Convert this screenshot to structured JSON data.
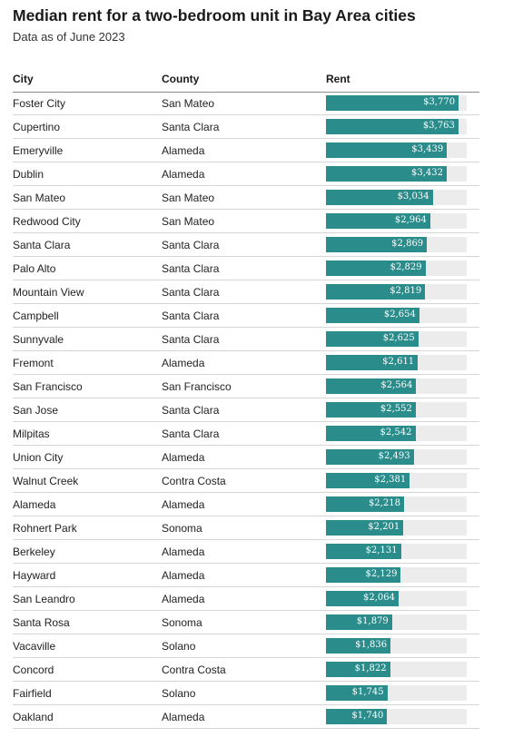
{
  "header": {
    "title": "Median rent for a two-bedroom unit in Bay Area cities",
    "subtitle": "Data as of June 2023"
  },
  "columns": {
    "city": "City",
    "county": "County",
    "rent": "Rent"
  },
  "colors": {
    "bar": "#2b8c8c",
    "track": "#ececec"
  },
  "chart_data": {
    "type": "bar",
    "orientation": "horizontal",
    "title": "Median rent for a two-bedroom unit in Bay Area cities",
    "subtitle": "Data as of June 2023",
    "xlim": [
      0,
      4000
    ],
    "grid": false,
    "rows": [
      {
        "city": "Foster City",
        "county": "San Mateo",
        "rent": 3770,
        "label": "$3,770"
      },
      {
        "city": "Cupertino",
        "county": "Santa Clara",
        "rent": 3763,
        "label": "$3,763"
      },
      {
        "city": "Emeryville",
        "county": "Alameda",
        "rent": 3439,
        "label": "$3,439"
      },
      {
        "city": "Dublin",
        "county": "Alameda",
        "rent": 3432,
        "label": "$3,432"
      },
      {
        "city": "San Mateo",
        "county": "San Mateo",
        "rent": 3034,
        "label": "$3,034"
      },
      {
        "city": "Redwood City",
        "county": "San Mateo",
        "rent": 2964,
        "label": "$2,964"
      },
      {
        "city": "Santa Clara",
        "county": "Santa Clara",
        "rent": 2869,
        "label": "$2,869"
      },
      {
        "city": "Palo Alto",
        "county": "Santa Clara",
        "rent": 2829,
        "label": "$2,829"
      },
      {
        "city": "Mountain View",
        "county": "Santa Clara",
        "rent": 2819,
        "label": "$2,819"
      },
      {
        "city": "Campbell",
        "county": "Santa Clara",
        "rent": 2654,
        "label": "$2,654"
      },
      {
        "city": "Sunnyvale",
        "county": "Santa Clara",
        "rent": 2625,
        "label": "$2,625"
      },
      {
        "city": "Fremont",
        "county": "Alameda",
        "rent": 2611,
        "label": "$2,611"
      },
      {
        "city": "San Francisco",
        "county": "San Francisco",
        "rent": 2564,
        "label": "$2,564"
      },
      {
        "city": "San Jose",
        "county": "Santa Clara",
        "rent": 2552,
        "label": "$2,552"
      },
      {
        "city": "Milpitas",
        "county": "Santa Clara",
        "rent": 2542,
        "label": "$2,542"
      },
      {
        "city": "Union City",
        "county": "Alameda",
        "rent": 2493,
        "label": "$2,493"
      },
      {
        "city": "Walnut Creek",
        "county": "Contra Costa",
        "rent": 2381,
        "label": "$2,381"
      },
      {
        "city": "Alameda",
        "county": "Alameda",
        "rent": 2218,
        "label": "$2,218"
      },
      {
        "city": "Rohnert Park",
        "county": "Sonoma",
        "rent": 2201,
        "label": "$2,201"
      },
      {
        "city": "Berkeley",
        "county": "Alameda",
        "rent": 2131,
        "label": "$2,131"
      },
      {
        "city": "Hayward",
        "county": "Alameda",
        "rent": 2129,
        "label": "$2,129"
      },
      {
        "city": "San Leandro",
        "county": "Alameda",
        "rent": 2064,
        "label": "$2,064"
      },
      {
        "city": "Santa Rosa",
        "county": "Sonoma",
        "rent": 1879,
        "label": "$1,879"
      },
      {
        "city": "Vacaville",
        "county": "Solano",
        "rent": 1836,
        "label": "$1,836"
      },
      {
        "city": "Concord",
        "county": "Contra Costa",
        "rent": 1822,
        "label": "$1,822"
      },
      {
        "city": "Fairfield",
        "county": "Solano",
        "rent": 1745,
        "label": "$1,745"
      },
      {
        "city": "Oakland",
        "county": "Alameda",
        "rent": 1740,
        "label": "$1,740"
      }
    ]
  }
}
